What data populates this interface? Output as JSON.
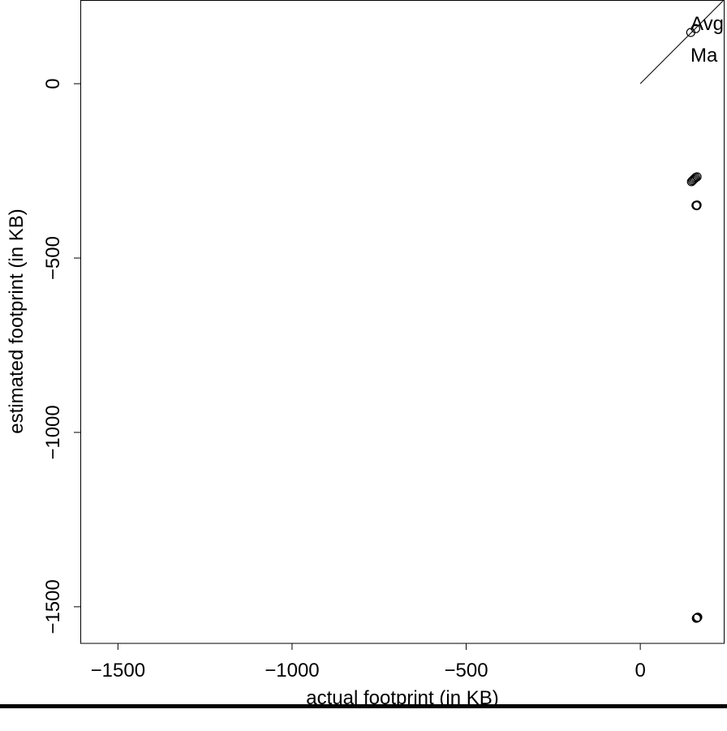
{
  "chart_data": {
    "type": "scatter",
    "x_label": "actual footprint (in KB)",
    "y_label": "estimated footprint (in KB)",
    "legend": [
      "Avg",
      "Ma"
    ],
    "legend_position": "top-right",
    "color": "#000000",
    "x": [
      145,
      159,
      147,
      150,
      153,
      156,
      159,
      163,
      160,
      162,
      163,
      161,
      163,
      165
    ],
    "y": [
      147,
      158,
      -281,
      -278,
      -275,
      -272,
      -269,
      -267,
      -349,
      -350,
      -348,
      -1533,
      -1532,
      -1530
    ],
    "identity_line": [
      0,
      250
    ],
    "xlim": [
      -1608,
      242
    ],
    "ylim": [
      -1605,
      240
    ],
    "xticks": [
      {
        "value": -1500,
        "label": "−1500"
      },
      {
        "value": -1000,
        "label": "−1000"
      },
      {
        "value": -500,
        "label": "−500"
      },
      0
    ],
    "yticks": [
      {
        "value": -1500,
        "label": "−1500"
      },
      {
        "value": -1000,
        "label": "−1000"
      },
      {
        "value": -500,
        "label": "−500"
      },
      0
    ]
  }
}
